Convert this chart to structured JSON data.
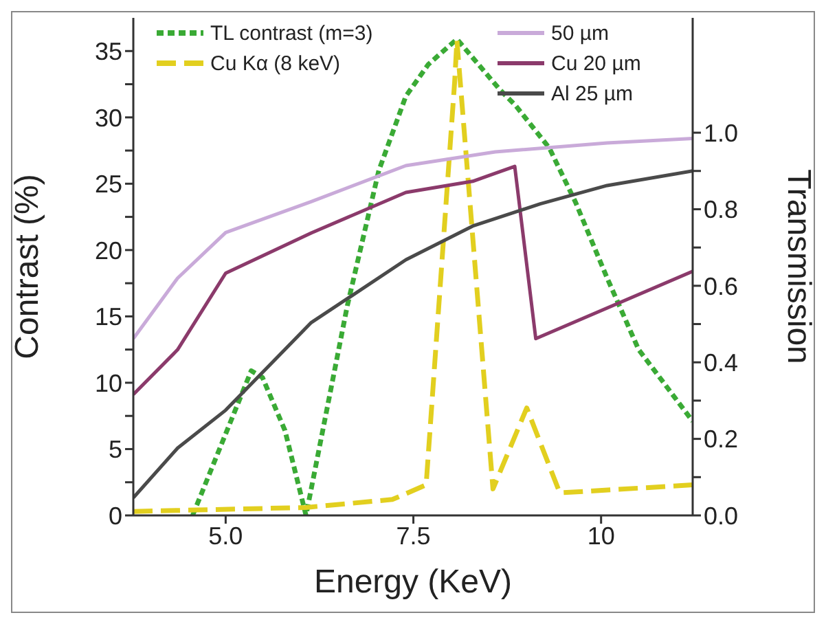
{
  "chart_data": {
    "type": "line",
    "xlabel": "Energy (KeV)",
    "ylabel": "Contrast (%)",
    "y2label": "Transmission",
    "xlim": [
      3.77,
      11.22
    ],
    "xticks": [
      {
        "value": 5,
        "label": "5.0"
      },
      {
        "value": 7.5,
        "label": "7.5"
      },
      10
    ],
    "ylim": [
      0,
      37.5
    ],
    "yticks": [
      0,
      {
        "value": 2.5,
        "label": null
      },
      5,
      {
        "value": 7.5,
        "label": null
      },
      10,
      {
        "value": 12.5,
        "label": null
      },
      15,
      {
        "value": 17.5,
        "label": null
      },
      20,
      {
        "value": 22.5,
        "label": null
      },
      25,
      {
        "value": 27.5,
        "label": null
      },
      30,
      {
        "value": 32.5,
        "label": null
      },
      35
    ],
    "y2lim": [
      0,
      1.3
    ],
    "y2ticks": [
      {
        "value": 0,
        "label": "0.0"
      },
      {
        "value": 0.1,
        "label": null
      },
      {
        "value": 0.2,
        "label": "0.2"
      },
      {
        "value": 0.3,
        "label": null
      },
      {
        "value": 0.4,
        "label": "0.4"
      },
      {
        "value": 0.5,
        "label": null
      },
      {
        "value": 0.6,
        "label": "0.6"
      },
      {
        "value": 0.7,
        "label": null
      },
      {
        "value": 0.8,
        "label": "0.8"
      },
      {
        "value": 0.9,
        "label": null
      },
      {
        "value": 1,
        "label": "1.0"
      }
    ],
    "grid": false,
    "legend": "top",
    "marker": "none",
    "series": [
      {
        "name": "TL contrast (m=3)",
        "color": "#3aaa35",
        "line_style": "dotted",
        "x": [
          4.56,
          5.34,
          5.49,
          5.79,
          6.07,
          6.62,
          7.04,
          7.4,
          7.7,
          8.08,
          8.65,
          8.86,
          9.31,
          9.66,
          10.08,
          10.5,
          10.86,
          11.22
        ],
        "values": [
          0,
          10.9,
          10.4,
          6.4,
          0,
          15.8,
          26,
          31.6,
          34,
          35.9,
          32.1,
          30.9,
          27.7,
          23.6,
          17.9,
          12.5,
          9.8,
          7.1
        ]
      },
      {
        "name": "Cu Kα (8 keV)",
        "color": "#e2cf1f",
        "line_style": "dashed",
        "x": [
          3.77,
          6.07,
          7.22,
          7.67,
          8.05,
          8.08,
          8.56,
          9.01,
          9.45,
          11.22
        ],
        "values": [
          0.3,
          0.6,
          1.2,
          2.3,
          32.7,
          35.8,
          2,
          8.1,
          1.7,
          2.3
        ]
      },
      {
        "name": "50 µm",
        "color": "#c9aad9",
        "line_style": "solid",
        "axis": "y2",
        "x": [
          3.77,
          4.36,
          5,
          6.14,
          7.4,
          8.59,
          10.08,
          11.22
        ],
        "values": [
          0.462,
          0.62,
          0.739,
          0.82,
          0.914,
          0.95,
          0.973,
          0.985
        ]
      },
      {
        "name": "Cu 20 µm",
        "color": "#8b3a6b",
        "line_style": "solid",
        "axis": "y2",
        "x": [
          3.77,
          4.36,
          5,
          6.14,
          7.4,
          8.29,
          8.85,
          9.13,
          11.22
        ],
        "values": [
          0.316,
          0.433,
          0.633,
          0.738,
          0.844,
          0.873,
          0.912,
          0.462,
          0.638
        ]
      },
      {
        "name": "Al 25 µm",
        "color": "#4a4a4a",
        "line_style": "solid",
        "axis": "y2",
        "x": [
          3.77,
          4.36,
          5,
          6.14,
          6.68,
          7.4,
          8.29,
          9.19,
          10.08,
          11.22
        ],
        "values": [
          0.046,
          0.176,
          0.275,
          0.504,
          0.574,
          0.668,
          0.756,
          0.814,
          0.862,
          0.9
        ]
      }
    ]
  }
}
